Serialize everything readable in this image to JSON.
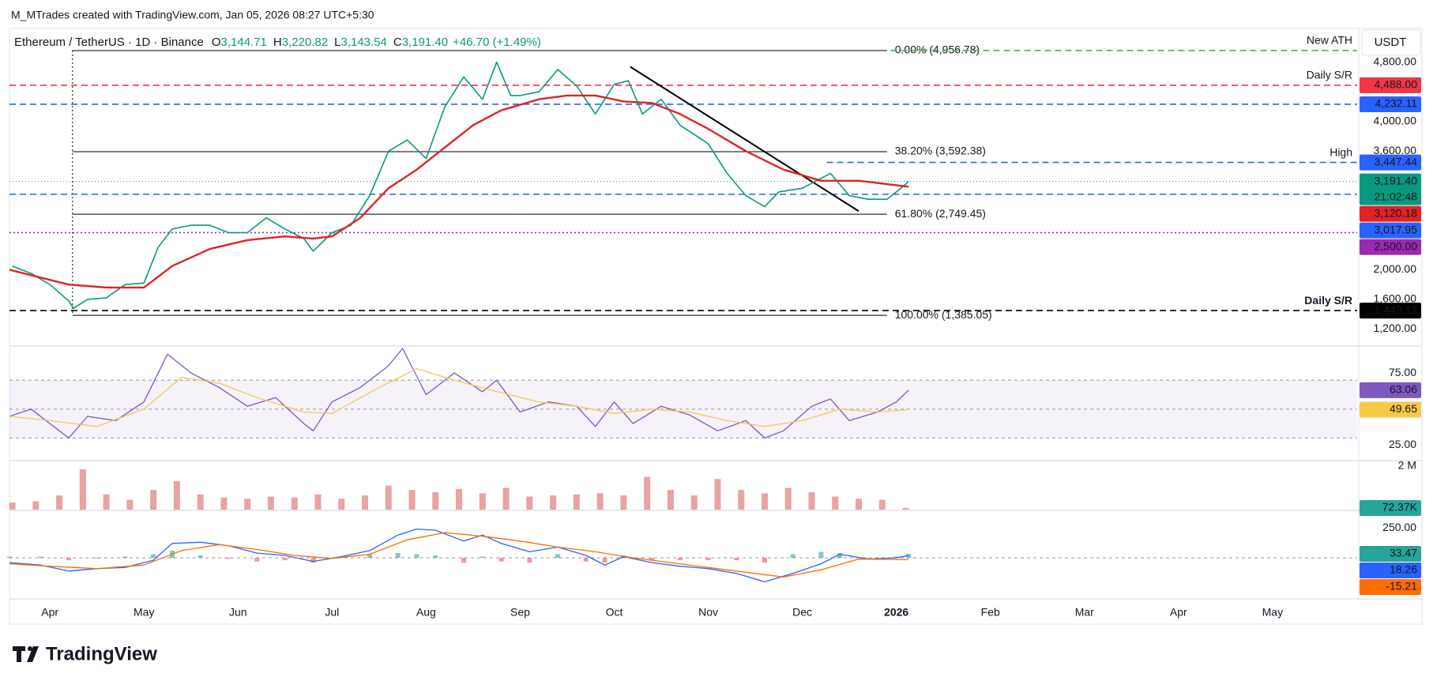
{
  "header": {
    "attribution": "M_MTrades created with TradingView.com, Jan 05, 2026 08:27 UTC+5:30",
    "symbol": "Ethereum / TetherUS · 1D · Binance",
    "ohlc": [
      {
        "label": "O",
        "value": "3,144.71"
      },
      {
        "label": "H",
        "value": "3,220.82"
      },
      {
        "label": "L",
        "value": "3,143.54"
      },
      {
        "label": "C",
        "value": "3,191.40"
      }
    ],
    "change": "+46.70 (+1.49%)",
    "currency": "USDT"
  },
  "footer": {
    "brand": "TradingView"
  },
  "chart_data": [
    {
      "type": "line",
      "xlim": [
        -0.43,
        13.9
      ],
      "ylim": [
        1013,
        5148
      ],
      "grid": false,
      "yticks": [
        {
          "value": 4800,
          "label": "4,800.00"
        },
        {
          "value": 4000,
          "label": "4,000.00"
        },
        {
          "value": 3600,
          "label": "3,600.00"
        },
        {
          "value": 2000,
          "label": "2,000.00"
        },
        {
          "value": 1600,
          "label": "1,600.00"
        },
        {
          "value": 1200,
          "label": "1,200.00"
        }
      ],
      "series": [
        {
          "color": "#089981",
          "width": 1.6,
          "price_line": true,
          "last_label": "3,191.40",
          "countdown": "21:02:48",
          "x": [
            -0.4,
            -0.2,
            0,
            0.2,
            0.25,
            0.4,
            0.6,
            0.8,
            1.0,
            1.15,
            1.3,
            1.5,
            1.7,
            1.9,
            2.1,
            2.3,
            2.5,
            2.7,
            2.8,
            3.0,
            3.2,
            3.4,
            3.6,
            3.8,
            4.0,
            4.2,
            4.4,
            4.6,
            4.75,
            4.9,
            5.0,
            5.2,
            5.4,
            5.6,
            5.8,
            6.0,
            6.15,
            6.3,
            6.5,
            6.7,
            7.0,
            7.2,
            7.4,
            7.6,
            7.75,
            8.0,
            8.3,
            8.5,
            8.7,
            8.9,
            9.05,
            9.13
          ],
          "values": [
            2050,
            1950,
            1800,
            1580,
            1480,
            1600,
            1620,
            1800,
            1820,
            2300,
            2550,
            2600,
            2600,
            2500,
            2500,
            2700,
            2550,
            2420,
            2250,
            2500,
            2600,
            3000,
            3600,
            3750,
            3500,
            4200,
            4600,
            4300,
            4800,
            4350,
            4350,
            4400,
            4700,
            4480,
            4100,
            4500,
            4550,
            4100,
            4300,
            3950,
            3700,
            3300,
            3000,
            2850,
            3050,
            3100,
            3300,
            3000,
            2950,
            2950,
            3100,
            3191.4
          ]
        },
        {
          "color": "#e02424",
          "width": 2.4,
          "last_label": "3,120.18",
          "x": [
            -0.43,
            0.2,
            0.6,
            1.0,
            1.3,
            1.7,
            2.1,
            2.5,
            2.8,
            3.0,
            3.3,
            3.6,
            3.9,
            4.2,
            4.5,
            4.8,
            5.2,
            5.5,
            5.8,
            6.1,
            6.4,
            6.7,
            7.0,
            7.4,
            7.8,
            8.2,
            8.6,
            9.13
          ],
          "values": [
            2000,
            1800,
            1760,
            1760,
            2050,
            2280,
            2400,
            2450,
            2420,
            2450,
            2700,
            3100,
            3350,
            3650,
            3950,
            4150,
            4300,
            4350,
            4350,
            4270,
            4250,
            4100,
            3900,
            3600,
            3350,
            3200,
            3200,
            3120.18
          ]
        }
      ],
      "levels": [
        {
          "value": 4956.78,
          "color": "#4caf50",
          "from": 8.94,
          "text": "New ATH"
        },
        {
          "value": 4488,
          "label": "4,488.00",
          "color": "#f23645",
          "text": "Daily S/R"
        },
        {
          "value": 4232.11,
          "label": "4,232.11",
          "color": "#2962ff"
        },
        {
          "value": 3447.44,
          "label": "3,447.44",
          "color": "#2962ff",
          "from": 8.26,
          "text": "High"
        },
        {
          "value": 3017.95,
          "label": "3,017.95",
          "color": "#2962ff"
        },
        {
          "value": 2500,
          "label": "2,500.00",
          "color": "#9c27b0",
          "dotted": true
        },
        {
          "value": 1449.12,
          "label": "1,449.12",
          "color": "#000000",
          "text": "Daily S/R"
        }
      ],
      "fib": {
        "x": [
          0.24,
          8.9
        ],
        "color": "#000000",
        "levels": [
          {
            "value": 4956.78,
            "label": "0.00% (4,956.78)"
          },
          {
            "value": 3592.38,
            "label": "38.20% (3,592.38)"
          },
          {
            "value": 2749.45,
            "label": "61.80% (2,749.45)"
          },
          {
            "value": 1385.05,
            "label": "100.00% (1,385.05)"
          }
        ]
      },
      "trendline": {
        "x": [
          6.17,
          8.6
        ],
        "y": [
          4738,
          2790
        ],
        "color": "#000000"
      }
    },
    {
      "type": "line",
      "xlim": [
        -0.43,
        13.9
      ],
      "ylim": [
        16,
        92
      ],
      "grid": false,
      "yticks": [
        {
          "value": 75,
          "label": "75.00"
        },
        {
          "value": 25,
          "label": "25.00"
        }
      ],
      "bands": [
        70,
        50,
        30
      ],
      "band_fill": "#7e57c2",
      "series": [
        {
          "color": "#7e57c2",
          "width": 1.3,
          "last_label": "63.06",
          "x": [
            -0.43,
            -0.2,
            0,
            0.2,
            0.4,
            0.7,
            1.0,
            1.25,
            1.5,
            1.8,
            2.1,
            2.4,
            2.7,
            2.8,
            3.0,
            3.3,
            3.6,
            3.75,
            4.0,
            4.3,
            4.6,
            4.75,
            5.0,
            5.3,
            5.6,
            5.8,
            6.0,
            6.2,
            6.5,
            6.8,
            7.1,
            7.4,
            7.6,
            7.8,
            8.1,
            8.3,
            8.5,
            8.8,
            9.0,
            9.13
          ],
          "values": [
            45,
            50,
            40,
            30,
            45,
            42,
            55,
            88,
            75,
            65,
            52,
            58,
            40,
            35,
            55,
            65,
            80,
            92,
            60,
            75,
            62,
            70,
            48,
            55,
            52,
            38,
            55,
            40,
            52,
            46,
            35,
            42,
            30,
            35,
            52,
            57,
            42,
            48,
            55,
            63.06
          ]
        },
        {
          "color": "#f7c948",
          "width": 1.3,
          "last_label": "49.65",
          "tag_text": "#131722",
          "x": [
            -0.43,
            0,
            0.5,
            1.0,
            1.4,
            1.8,
            2.2,
            2.7,
            3.0,
            3.5,
            3.9,
            4.3,
            4.7,
            5.2,
            5.6,
            6.0,
            6.4,
            6.8,
            7.2,
            7.6,
            8.0,
            8.4,
            8.8,
            9.13
          ],
          "values": [
            45,
            42,
            38,
            50,
            72,
            68,
            58,
            48,
            47,
            65,
            78,
            70,
            63,
            55,
            52,
            47,
            50,
            48,
            42,
            38,
            42,
            50,
            48,
            49.65
          ]
        }
      ]
    },
    {
      "type": "bar",
      "xlim": [
        -0.43,
        13.9
      ],
      "ylim": [
        0,
        2140000
      ],
      "grid": false,
      "yticks": [
        {
          "value": 2000000,
          "label": "2 M"
        }
      ],
      "color": "#e8a3a3",
      "tag_color": "#26a69a",
      "last_label": "72.37K",
      "x": [
        -0.4,
        -0.15,
        0.1,
        0.35,
        0.6,
        0.85,
        1.1,
        1.35,
        1.6,
        1.85,
        2.1,
        2.35,
        2.6,
        2.85,
        3.1,
        3.35,
        3.6,
        3.85,
        4.1,
        4.35,
        4.6,
        4.85,
        5.1,
        5.35,
        5.6,
        5.85,
        6.1,
        6.35,
        6.6,
        6.85,
        7.1,
        7.35,
        7.6,
        7.85,
        8.1,
        8.35,
        8.6,
        8.85,
        9.1
      ],
      "values": [
        320000,
        380000,
        650000,
        1850000,
        700000,
        450000,
        900000,
        1300000,
        700000,
        550000,
        500000,
        600000,
        550000,
        700000,
        500000,
        650000,
        1100000,
        900000,
        800000,
        950000,
        750000,
        1000000,
        600000,
        650000,
        700000,
        750000,
        650000,
        1500000,
        900000,
        650000,
        1400000,
        900000,
        750000,
        1000000,
        800000,
        600000,
        500000,
        450000,
        72370
      ]
    },
    {
      "type": "line",
      "xlim": [
        -0.43,
        13.9
      ],
      "ylim": [
        -342,
        382
      ],
      "grid": false,
      "yticks": [
        {
          "value": 250,
          "label": "250.00"
        }
      ],
      "bands": [
        0
      ],
      "xticks": [
        {
          "value": 0,
          "label": "Apr"
        },
        {
          "value": 1,
          "label": "May"
        },
        {
          "value": 2,
          "label": "Jun"
        },
        {
          "value": 3,
          "label": "Jul"
        },
        {
          "value": 4,
          "label": "Aug"
        },
        {
          "value": 5,
          "label": "Sep"
        },
        {
          "value": 6,
          "label": "Oct"
        },
        {
          "value": 7,
          "label": "Nov"
        },
        {
          "value": 8,
          "label": "Dec"
        },
        {
          "value": 9,
          "label": "2026"
        },
        {
          "value": 10,
          "label": "Feb"
        },
        {
          "value": 11,
          "label": "Mar"
        },
        {
          "value": 12,
          "label": "Apr"
        },
        {
          "value": 13,
          "label": "May"
        }
      ],
      "histogram": {
        "up": "#26a69a",
        "down": "#ef5350",
        "last_label": "33.47",
        "x": [
          -0.43,
          -0.1,
          0.2,
          0.5,
          0.8,
          1.1,
          1.3,
          1.6,
          1.9,
          2.2,
          2.5,
          2.8,
          3.1,
          3.4,
          3.7,
          3.9,
          4.1,
          4.4,
          4.6,
          4.8,
          5.1,
          5.4,
          5.7,
          5.9,
          6.1,
          6.4,
          6.7,
          7.0,
          7.3,
          7.6,
          7.9,
          8.2,
          8.4,
          8.7,
          9.0,
          9.13
        ],
        "values": [
          10,
          10,
          -20,
          0,
          10,
          30,
          60,
          20,
          -10,
          -30,
          -20,
          -40,
          10,
          30,
          40,
          30,
          20,
          -40,
          10,
          -30,
          -40,
          30,
          -30,
          -40,
          20,
          -20,
          -20,
          -20,
          -20,
          -40,
          30,
          50,
          40,
          -10,
          10,
          33.47
        ]
      },
      "series": [
        {
          "color": "#2962ff",
          "width": 1.3,
          "last_label": "18.26",
          "x": [
            -0.43,
            -0.1,
            0.2,
            0.5,
            0.8,
            1.1,
            1.3,
            1.6,
            1.9,
            2.2,
            2.5,
            2.8,
            3.1,
            3.4,
            3.7,
            3.9,
            4.1,
            4.4,
            4.6,
            4.8,
            5.1,
            5.4,
            5.7,
            5.9,
            6.1,
            6.4,
            6.7,
            7.0,
            7.3,
            7.6,
            7.9,
            8.2,
            8.4,
            8.7,
            9.0,
            9.13
          ],
          "values": [
            -40,
            -60,
            -110,
            -90,
            -80,
            -20,
            120,
            130,
            100,
            40,
            20,
            -30,
            10,
            60,
            190,
            240,
            230,
            140,
            190,
            120,
            50,
            90,
            20,
            -60,
            10,
            -40,
            -70,
            -90,
            -130,
            -200,
            -130,
            -50,
            30,
            -10,
            0,
            18.26
          ]
        },
        {
          "color": "#ff6d00",
          "width": 1.3,
          "last_label": "-15.21",
          "x": [
            -0.43,
            0,
            0.5,
            1.0,
            1.4,
            1.8,
            2.2,
            2.6,
            3.0,
            3.4,
            3.8,
            4.2,
            4.6,
            5.0,
            5.4,
            5.8,
            6.2,
            6.6,
            7.0,
            7.4,
            7.8,
            8.2,
            8.6,
            9.13
          ],
          "values": [
            -50,
            -70,
            -90,
            -60,
            60,
            110,
            70,
            20,
            -5,
            30,
            150,
            210,
            180,
            140,
            90,
            50,
            0,
            -40,
            -80,
            -120,
            -160,
            -100,
            -10,
            -15.21
          ]
        }
      ]
    }
  ]
}
